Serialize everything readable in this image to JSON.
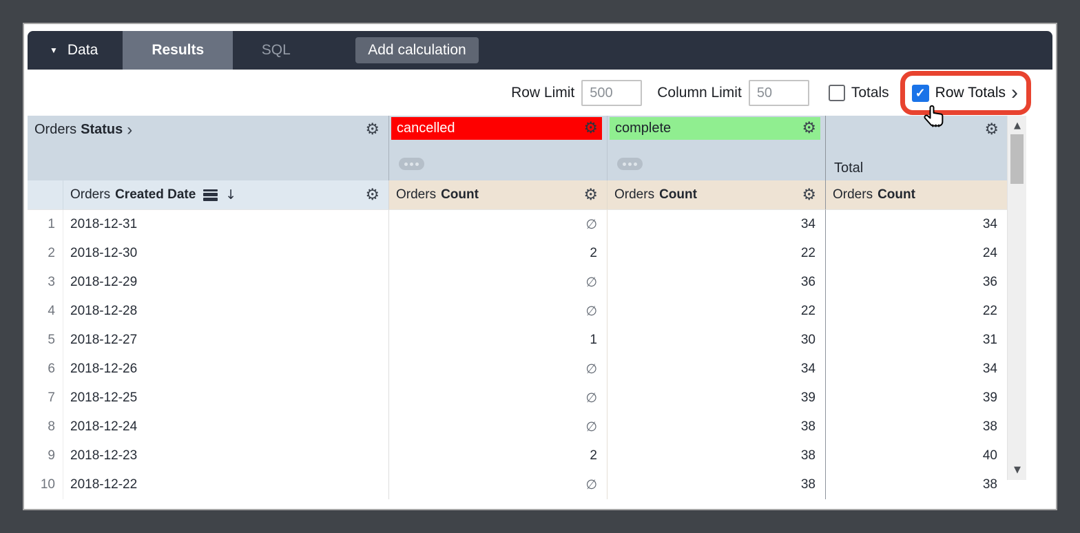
{
  "icons": {
    "gear": "⚙",
    "dropdown_arrow": "▼",
    "chevron_right": "›",
    "sort_desc": "↓",
    "check": "✓",
    "scroll_up": "▲",
    "scroll_down": "▼"
  },
  "toolbar": {
    "data_label": "Data",
    "results_tab": "Results",
    "sql_tab": "SQL",
    "add_calculation": "Add calculation"
  },
  "controls": {
    "row_limit_label": "Row Limit",
    "row_limit_value": "500",
    "column_limit_label": "Column Limit",
    "column_limit_value": "50",
    "totals_label": "Totals",
    "totals_checked": false,
    "row_totals_label": "Row Totals",
    "row_totals_checked": true
  },
  "annotation": {
    "highlight_color": "#e8432f",
    "checkbox_color": "#1a73e8"
  },
  "table": {
    "pivot_field": {
      "view": "Orders",
      "field": "Status"
    },
    "pivot_values": [
      {
        "label": "cancelled",
        "bg": "#fe0000",
        "text": "#ffffff"
      },
      {
        "label": "complete",
        "bg": "#90ee90",
        "text": "#1c222b"
      }
    ],
    "total_label": "Total",
    "date_field": {
      "view": "Orders",
      "field": "Created Date"
    },
    "measure": {
      "view": "Orders",
      "field": "Count"
    },
    "null_symbol": "∅",
    "rows": [
      {
        "num": "1",
        "date": "2018-12-31",
        "cancelled": "∅",
        "complete": "34",
        "total": "34"
      },
      {
        "num": "2",
        "date": "2018-12-30",
        "cancelled": "2",
        "complete": "22",
        "total": "24"
      },
      {
        "num": "3",
        "date": "2018-12-29",
        "cancelled": "∅",
        "complete": "36",
        "total": "36"
      },
      {
        "num": "4",
        "date": "2018-12-28",
        "cancelled": "∅",
        "complete": "22",
        "total": "22"
      },
      {
        "num": "5",
        "date": "2018-12-27",
        "cancelled": "1",
        "complete": "30",
        "total": "31"
      },
      {
        "num": "6",
        "date": "2018-12-26",
        "cancelled": "∅",
        "complete": "34",
        "total": "34"
      },
      {
        "num": "7",
        "date": "2018-12-25",
        "cancelled": "∅",
        "complete": "39",
        "total": "39"
      },
      {
        "num": "8",
        "date": "2018-12-24",
        "cancelled": "∅",
        "complete": "38",
        "total": "38"
      },
      {
        "num": "9",
        "date": "2018-12-23",
        "cancelled": "2",
        "complete": "38",
        "total": "40"
      },
      {
        "num": "10",
        "date": "2018-12-22",
        "cancelled": "∅",
        "complete": "38",
        "total": "38"
      }
    ]
  }
}
